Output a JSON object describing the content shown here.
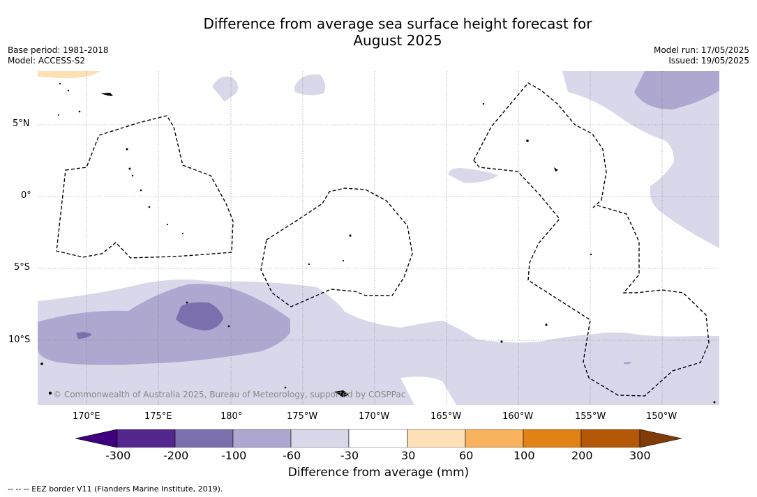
{
  "title_line1": "Difference from average sea surface height forecast for",
  "title_line2": "August 2025",
  "meta_left": {
    "base_period": "Base period: 1981-2018",
    "model": "Model: ACCESS-S2"
  },
  "meta_right": {
    "model_run": "Model run: 17/05/2025",
    "issued": "Issued: 19/05/2025"
  },
  "map": {
    "copyright": "© Commonwealth of Australia 2025, Bureau of Meteorology, supported by COSPPac",
    "lat_labels": [
      "5°N",
      "0°",
      "5°S",
      "10°S"
    ],
    "lon_labels": [
      "170°E",
      "175°E",
      "180°",
      "175°W",
      "170°W",
      "165°W",
      "160°W",
      "155°W",
      "150°W"
    ]
  },
  "colorbar": {
    "title": "Difference from average (mm)",
    "tick_labels": [
      "-300",
      "-200",
      "-100",
      "-60",
      "-30",
      "30",
      "60",
      "100",
      "200",
      "300"
    ],
    "colors": [
      "#3f007d",
      "#54278f",
      "#7c6fad",
      "#aea7cf",
      "#d8d8ea",
      "#ffffff",
      "#fde0b6",
      "#f9b35f",
      "#e08214",
      "#b35806",
      "#7f3b08"
    ]
  },
  "footnote": "-- -- -- EEZ border V11 (Flanders Marine Institute, 2019)."
}
